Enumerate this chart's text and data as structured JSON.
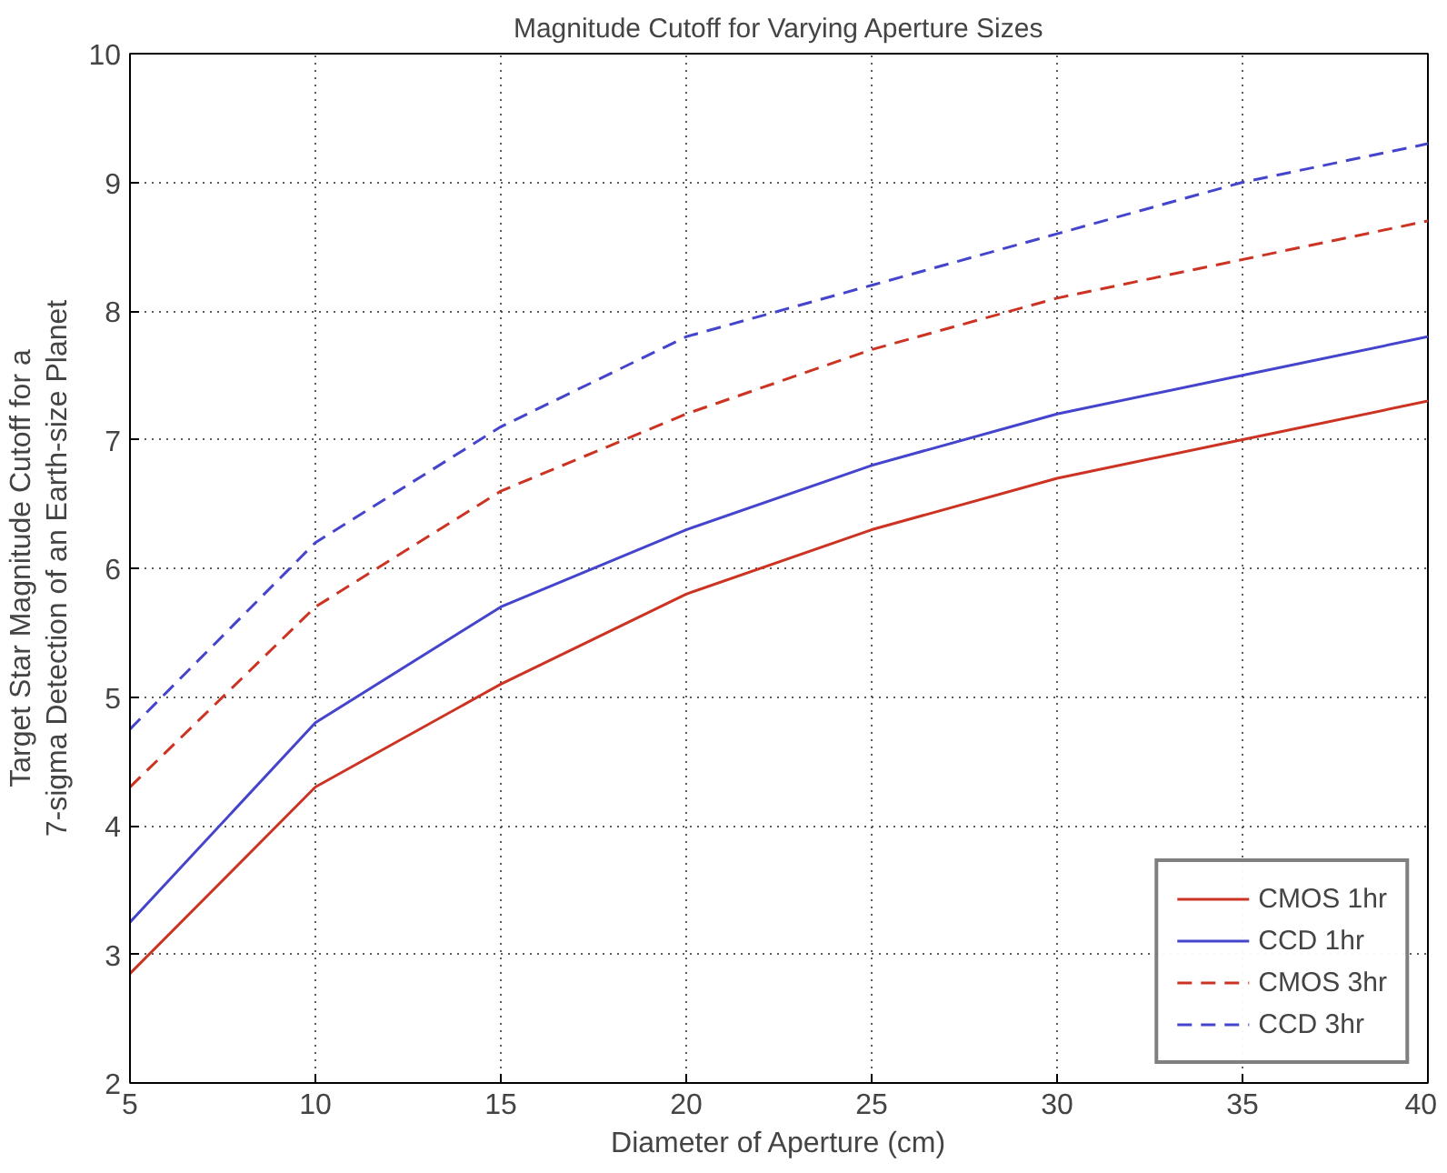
{
  "chart_data": {
    "type": "line",
    "title": "Magnitude Cutoff for Varying Aperture Sizes",
    "xlabel": "Diameter of Aperture (cm)",
    "ylabel": "Target Star Magnitude Cutoff for a\n7-sigma Detection of an Earth-size Planet",
    "x": [
      5,
      10,
      15,
      20,
      25,
      30,
      35,
      40
    ],
    "series": [
      {
        "name": "CMOS 1hr",
        "color": "#cc3322",
        "line_style": "solid",
        "values": [
          2.85,
          4.3,
          5.1,
          5.8,
          6.3,
          6.7,
          7.0,
          7.3
        ]
      },
      {
        "name": "CCD 1hr",
        "color": "#4444cc",
        "line_style": "solid",
        "values": [
          3.25,
          4.8,
          5.7,
          6.3,
          6.8,
          7.2,
          7.5,
          7.8
        ]
      },
      {
        "name": "CMOS 3hr",
        "color": "#cc3322",
        "line_style": "dashed",
        "values": [
          4.3,
          5.7,
          6.6,
          7.2,
          7.7,
          8.1,
          8.4,
          8.7
        ]
      },
      {
        "name": "CCD 3hr",
        "color": "#4444cc",
        "line_style": "dashed",
        "values": [
          4.75,
          6.2,
          7.1,
          7.8,
          8.2,
          8.6,
          9.0,
          9.3
        ]
      }
    ],
    "xlim": [
      5,
      40
    ],
    "ylim": [
      2,
      10
    ],
    "xticks": [
      5,
      10,
      15,
      20,
      25,
      30,
      35,
      40
    ],
    "yticks": [
      2,
      3,
      4,
      5,
      6,
      7,
      8,
      9,
      10
    ],
    "grid": true,
    "legend": "bottom right",
    "marker": "none"
  }
}
